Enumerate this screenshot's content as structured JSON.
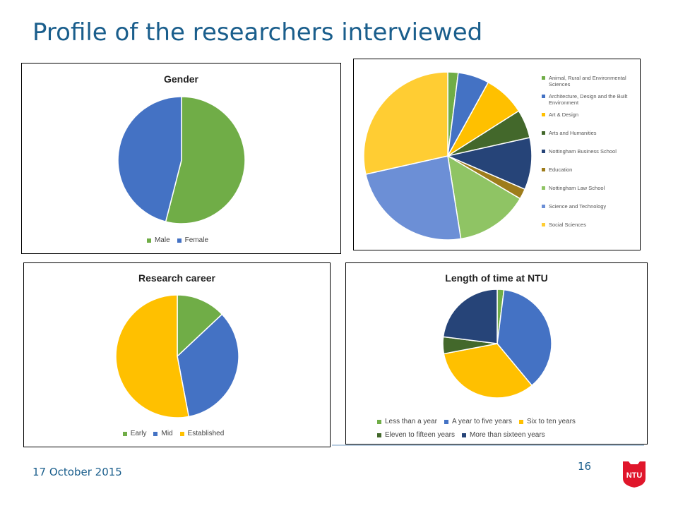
{
  "slide": {
    "title": "Profile of the researchers interviewed",
    "date": "17 October 2015",
    "page_number": "16",
    "logo_text": "NTU",
    "logo_color": "#e0162b"
  },
  "chart_data": [
    {
      "id": "gender",
      "type": "pie",
      "title": "Gender",
      "categories": [
        "Male",
        "Female"
      ],
      "values": [
        54,
        46
      ],
      "colors": [
        "#70ad47",
        "#4472c4"
      ],
      "legend": "bottom"
    },
    {
      "id": "school",
      "type": "pie",
      "title": "",
      "categories": [
        "Animal, Rural and Environmental Sciences",
        "Architecture, Design and the Built Environment",
        "Art & Design",
        "Arts and Humanities",
        "Nottingham Business School",
        "Education",
        "Nottingham Law School",
        "Science and Technology",
        "Social Sciences"
      ],
      "values": [
        2,
        6,
        8,
        5.5,
        10,
        2,
        14,
        24,
        28.5
      ],
      "colors": [
        "#70ad47",
        "#4472c4",
        "#ffc000",
        "#43682b",
        "#264478",
        "#9e7c1b",
        "#8fc464",
        "#6c8fd6",
        "#ffcd33"
      ],
      "legend": "right"
    },
    {
      "id": "career",
      "type": "pie",
      "title": "Research career",
      "categories": [
        "Early",
        "Mid",
        "Established"
      ],
      "values": [
        13,
        34,
        53
      ],
      "colors": [
        "#70ad47",
        "#4472c4",
        "#ffc000"
      ],
      "legend": "bottom"
    },
    {
      "id": "tenure",
      "type": "pie",
      "title": "Length of time at NTU",
      "categories": [
        "Less than a year",
        "A year to five years",
        "Six to ten years",
        "Eleven to fifteen years",
        "More than sixteen years"
      ],
      "values": [
        2,
        37,
        33,
        5,
        23
      ],
      "colors": [
        "#70ad47",
        "#4472c4",
        "#ffc000",
        "#43682b",
        "#264478"
      ],
      "legend": "bottom"
    }
  ]
}
